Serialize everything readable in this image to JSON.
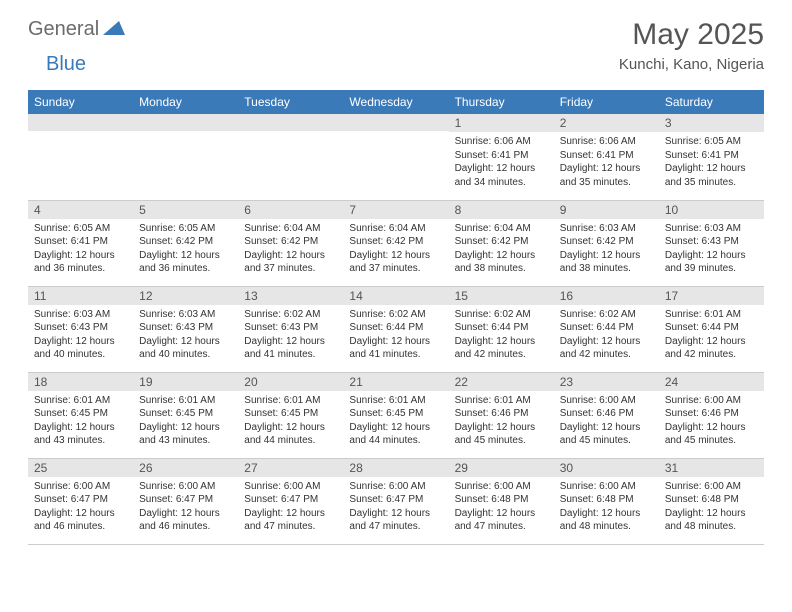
{
  "logo": {
    "text1": "General",
    "text2": "Blue"
  },
  "title": "May 2025",
  "location": "Kunchi, Kano, Nigeria",
  "colors": {
    "header_bg": "#3a7ab8",
    "header_fg": "#ffffff",
    "daynum_bg": "#e6e6e6",
    "border": "#cccccc",
    "text": "#333333",
    "title": "#555555"
  },
  "week_headers": [
    "Sunday",
    "Monday",
    "Tuesday",
    "Wednesday",
    "Thursday",
    "Friday",
    "Saturday"
  ],
  "weeks": [
    [
      {
        "n": "",
        "sr": "",
        "ss": "",
        "dl": ""
      },
      {
        "n": "",
        "sr": "",
        "ss": "",
        "dl": ""
      },
      {
        "n": "",
        "sr": "",
        "ss": "",
        "dl": ""
      },
      {
        "n": "",
        "sr": "",
        "ss": "",
        "dl": ""
      },
      {
        "n": "1",
        "sr": "Sunrise: 6:06 AM",
        "ss": "Sunset: 6:41 PM",
        "dl": "Daylight: 12 hours and 34 minutes."
      },
      {
        "n": "2",
        "sr": "Sunrise: 6:06 AM",
        "ss": "Sunset: 6:41 PM",
        "dl": "Daylight: 12 hours and 35 minutes."
      },
      {
        "n": "3",
        "sr": "Sunrise: 6:05 AM",
        "ss": "Sunset: 6:41 PM",
        "dl": "Daylight: 12 hours and 35 minutes."
      }
    ],
    [
      {
        "n": "4",
        "sr": "Sunrise: 6:05 AM",
        "ss": "Sunset: 6:41 PM",
        "dl": "Daylight: 12 hours and 36 minutes."
      },
      {
        "n": "5",
        "sr": "Sunrise: 6:05 AM",
        "ss": "Sunset: 6:42 PM",
        "dl": "Daylight: 12 hours and 36 minutes."
      },
      {
        "n": "6",
        "sr": "Sunrise: 6:04 AM",
        "ss": "Sunset: 6:42 PM",
        "dl": "Daylight: 12 hours and 37 minutes."
      },
      {
        "n": "7",
        "sr": "Sunrise: 6:04 AM",
        "ss": "Sunset: 6:42 PM",
        "dl": "Daylight: 12 hours and 37 minutes."
      },
      {
        "n": "8",
        "sr": "Sunrise: 6:04 AM",
        "ss": "Sunset: 6:42 PM",
        "dl": "Daylight: 12 hours and 38 minutes."
      },
      {
        "n": "9",
        "sr": "Sunrise: 6:03 AM",
        "ss": "Sunset: 6:42 PM",
        "dl": "Daylight: 12 hours and 38 minutes."
      },
      {
        "n": "10",
        "sr": "Sunrise: 6:03 AM",
        "ss": "Sunset: 6:43 PM",
        "dl": "Daylight: 12 hours and 39 minutes."
      }
    ],
    [
      {
        "n": "11",
        "sr": "Sunrise: 6:03 AM",
        "ss": "Sunset: 6:43 PM",
        "dl": "Daylight: 12 hours and 40 minutes."
      },
      {
        "n": "12",
        "sr": "Sunrise: 6:03 AM",
        "ss": "Sunset: 6:43 PM",
        "dl": "Daylight: 12 hours and 40 minutes."
      },
      {
        "n": "13",
        "sr": "Sunrise: 6:02 AM",
        "ss": "Sunset: 6:43 PM",
        "dl": "Daylight: 12 hours and 41 minutes."
      },
      {
        "n": "14",
        "sr": "Sunrise: 6:02 AM",
        "ss": "Sunset: 6:44 PM",
        "dl": "Daylight: 12 hours and 41 minutes."
      },
      {
        "n": "15",
        "sr": "Sunrise: 6:02 AM",
        "ss": "Sunset: 6:44 PM",
        "dl": "Daylight: 12 hours and 42 minutes."
      },
      {
        "n": "16",
        "sr": "Sunrise: 6:02 AM",
        "ss": "Sunset: 6:44 PM",
        "dl": "Daylight: 12 hours and 42 minutes."
      },
      {
        "n": "17",
        "sr": "Sunrise: 6:01 AM",
        "ss": "Sunset: 6:44 PM",
        "dl": "Daylight: 12 hours and 42 minutes."
      }
    ],
    [
      {
        "n": "18",
        "sr": "Sunrise: 6:01 AM",
        "ss": "Sunset: 6:45 PM",
        "dl": "Daylight: 12 hours and 43 minutes."
      },
      {
        "n": "19",
        "sr": "Sunrise: 6:01 AM",
        "ss": "Sunset: 6:45 PM",
        "dl": "Daylight: 12 hours and 43 minutes."
      },
      {
        "n": "20",
        "sr": "Sunrise: 6:01 AM",
        "ss": "Sunset: 6:45 PM",
        "dl": "Daylight: 12 hours and 44 minutes."
      },
      {
        "n": "21",
        "sr": "Sunrise: 6:01 AM",
        "ss": "Sunset: 6:45 PM",
        "dl": "Daylight: 12 hours and 44 minutes."
      },
      {
        "n": "22",
        "sr": "Sunrise: 6:01 AM",
        "ss": "Sunset: 6:46 PM",
        "dl": "Daylight: 12 hours and 45 minutes."
      },
      {
        "n": "23",
        "sr": "Sunrise: 6:00 AM",
        "ss": "Sunset: 6:46 PM",
        "dl": "Daylight: 12 hours and 45 minutes."
      },
      {
        "n": "24",
        "sr": "Sunrise: 6:00 AM",
        "ss": "Sunset: 6:46 PM",
        "dl": "Daylight: 12 hours and 45 minutes."
      }
    ],
    [
      {
        "n": "25",
        "sr": "Sunrise: 6:00 AM",
        "ss": "Sunset: 6:47 PM",
        "dl": "Daylight: 12 hours and 46 minutes."
      },
      {
        "n": "26",
        "sr": "Sunrise: 6:00 AM",
        "ss": "Sunset: 6:47 PM",
        "dl": "Daylight: 12 hours and 46 minutes."
      },
      {
        "n": "27",
        "sr": "Sunrise: 6:00 AM",
        "ss": "Sunset: 6:47 PM",
        "dl": "Daylight: 12 hours and 47 minutes."
      },
      {
        "n": "28",
        "sr": "Sunrise: 6:00 AM",
        "ss": "Sunset: 6:47 PM",
        "dl": "Daylight: 12 hours and 47 minutes."
      },
      {
        "n": "29",
        "sr": "Sunrise: 6:00 AM",
        "ss": "Sunset: 6:48 PM",
        "dl": "Daylight: 12 hours and 47 minutes."
      },
      {
        "n": "30",
        "sr": "Sunrise: 6:00 AM",
        "ss": "Sunset: 6:48 PM",
        "dl": "Daylight: 12 hours and 48 minutes."
      },
      {
        "n": "31",
        "sr": "Sunrise: 6:00 AM",
        "ss": "Sunset: 6:48 PM",
        "dl": "Daylight: 12 hours and 48 minutes."
      }
    ]
  ]
}
